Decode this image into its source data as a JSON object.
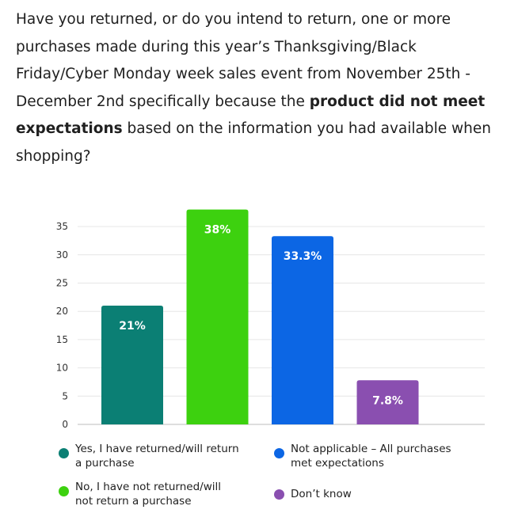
{
  "question": {
    "before": "Have you returned, or do you intend to return, one or more purchases made during this year’s Thanksgiving/Black Friday/Cyber Monday week sales event from November 25th - December 2nd specifically because the ",
    "bold": "product did not meet expectations",
    "after": " based on the information you had available when shopping?"
  },
  "chart_data": {
    "type": "bar",
    "categories": [
      "Yes, I have returned/will return a purchase",
      "No, I have not returned/will not return a purchase",
      "Not applicable – All purchases met expectations",
      "Don’t know"
    ],
    "values": [
      21,
      38,
      33.3,
      7.8
    ],
    "data_labels": [
      "21%",
      "38%",
      "33.3%",
      "7.8%"
    ],
    "colors": [
      "#0b7f74",
      "#3dd10f",
      "#0c66e4",
      "#8a4fb0"
    ],
    "y_ticks": [
      "0",
      "5",
      "10",
      "15",
      "20",
      "25",
      "30",
      "35"
    ],
    "ylim": [
      0,
      35
    ],
    "grid": true,
    "legend_position": "bottom"
  },
  "legend": [
    {
      "label": "Yes, I have returned/will return a purchase",
      "color": "#0b7f74"
    },
    {
      "label": "Not applicable – All purchases met expectations",
      "color": "#0c66e4"
    },
    {
      "label": "No, I have not returned/will not return a purchase",
      "color": "#3dd10f"
    },
    {
      "label": "Don’t know",
      "color": "#8a4fb0"
    }
  ]
}
